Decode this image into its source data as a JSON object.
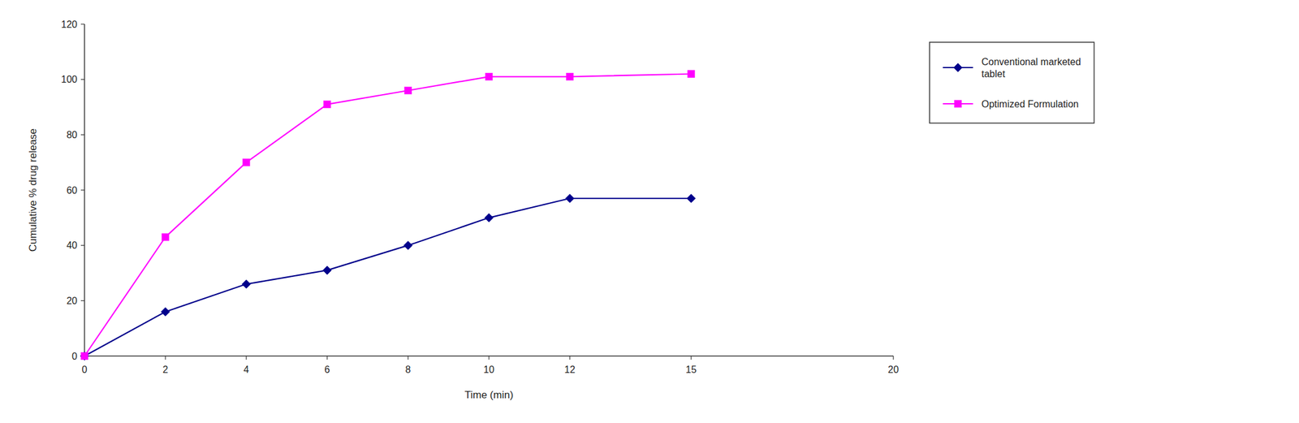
{
  "chart_data": {
    "type": "line",
    "xlabel": "Time (min)",
    "ylabel": "Cumulative % drug release",
    "x": [
      0,
      2,
      4,
      6,
      8,
      10,
      12,
      15
    ],
    "xlim": [
      0,
      20
    ],
    "ylim": [
      0,
      120
    ],
    "xticks": [
      0,
      2,
      4,
      6,
      8,
      10,
      12,
      15,
      20
    ],
    "yticks": [
      0,
      20,
      40,
      60,
      80,
      100,
      120
    ],
    "grid": false,
    "legend": "right",
    "series": [
      {
        "name": "Conventional marketed\ntablet",
        "color": "#00008B",
        "marker": "diamond",
        "values": [
          0,
          16,
          26,
          31,
          40,
          50,
          57,
          57
        ]
      },
      {
        "name": "Optimized Formulation",
        "color": "#FF00FF",
        "marker": "square",
        "values": [
          0,
          43,
          70,
          91,
          96,
          101,
          101,
          102
        ]
      }
    ]
  }
}
